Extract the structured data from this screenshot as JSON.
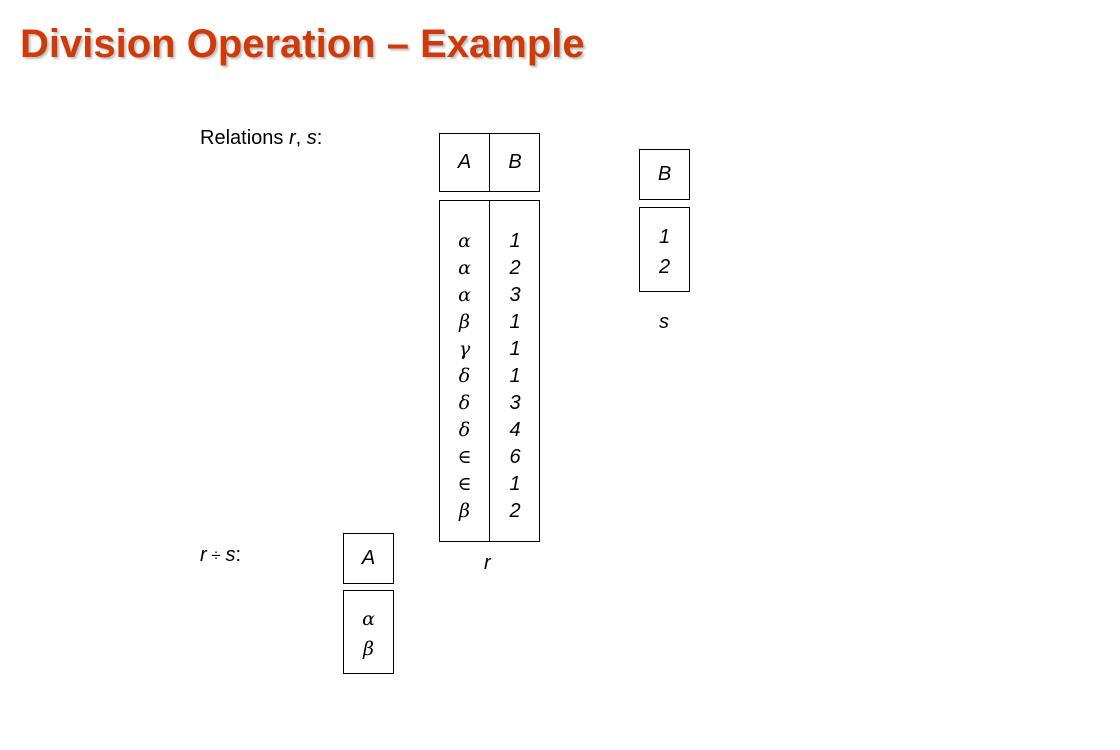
{
  "title": "Division Operation – Example",
  "relations_label": {
    "prefix": "Relations ",
    "r": "r",
    "sep": ", ",
    "s": "s",
    "suffix": ":"
  },
  "result_label": {
    "r": "r",
    "op": " ÷ ",
    "s": "s",
    "suffix": ":"
  },
  "relation_r": {
    "name": "r",
    "headers": [
      "A",
      "B"
    ],
    "rows": [
      [
        "α",
        "1"
      ],
      [
        "α",
        "2"
      ],
      [
        "α",
        "3"
      ],
      [
        "β",
        "1"
      ],
      [
        "γ",
        "1"
      ],
      [
        "δ",
        "1"
      ],
      [
        "δ",
        "3"
      ],
      [
        "δ",
        "4"
      ],
      [
        "∈",
        "6"
      ],
      [
        "∈",
        "1"
      ],
      [
        "β",
        "2"
      ]
    ]
  },
  "relation_s": {
    "name": "s",
    "headers": [
      "B"
    ],
    "rows": [
      [
        "1"
      ],
      [
        "2"
      ]
    ]
  },
  "result": {
    "headers": [
      "A"
    ],
    "rows": [
      [
        "α"
      ],
      [
        "β"
      ]
    ]
  }
}
